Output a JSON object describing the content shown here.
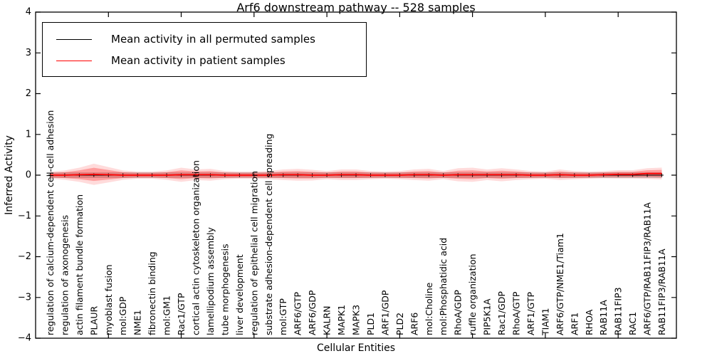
{
  "figure": {
    "title": "Arf6 downstream pathway -- 528 samples",
    "xlabel": "Cellular Entities",
    "ylabel": "Inferred Activity",
    "legend": [
      {
        "label": "Mean activity in all permuted samples",
        "color": "#000000"
      },
      {
        "label": "Mean activity in patient samples",
        "color": "#ff0000"
      }
    ]
  },
  "chart_data": {
    "type": "line",
    "title": "Arf6 downstream pathway -- 528 samples",
    "xlabel": "Cellular Entities",
    "ylabel": "Inferred Activity",
    "ylim": [
      -4,
      4
    ],
    "ytick_labels": [
      "4",
      "3",
      "2",
      "1",
      "0",
      "−1",
      "−2",
      "−3",
      "−4"
    ],
    "ytick_values": [
      4,
      3,
      2,
      1,
      0,
      -1,
      -2,
      -3,
      -4
    ],
    "xtick_major_units": [
      5,
      10,
      15,
      20,
      25,
      30,
      35,
      40
    ],
    "grid": false,
    "legend_position": "upper left",
    "categories": [
      "regulation of calcium-dependent cell-cell adhesion",
      "regulation of axonogenesis",
      "actin filament bundle formation",
      "PLAUR",
      "myoblast fusion",
      "mol:GDP",
      "NME1",
      "fibronectin binding",
      "mol:GM1",
      "Rac1/GTP",
      "cortical actin cytoskeleton organization",
      "lamellipodium assembly",
      "tube morphogenesis",
      "liver development",
      "regulation of epithelial cell migration",
      "substrate adhesion-dependent cell spreading",
      "mol:GTP",
      "ARF6/GTP",
      "ARF6/GDP",
      "KALRN",
      "MAPK1",
      "MAPK3",
      "PLD1",
      "ARF1/GDP",
      "PLD2",
      "ARF6",
      "mol:Choline",
      "mol:Phosphatidic acid",
      "RhoA/GDP",
      "ruffle organization",
      "PIP5K1A",
      "Rac1/GDP",
      "RhoA/GTP",
      "ARF1/GTP",
      "TIAM1",
      "ARF6/GTP/NME1/Tiam1",
      "ARF1",
      "RHOA",
      "RAB11A",
      "RAB11FIP3",
      "RAC1",
      "ARF6/GTP/RAB11FIP3/RAB11A",
      "RAB11FIP3/RAB11A"
    ],
    "series": [
      {
        "name": "Mean activity in all permuted samples",
        "color": "#000000",
        "marker": "+",
        "values": [
          0,
          0,
          0,
          0,
          0,
          0,
          0,
          0,
          0,
          0,
          0,
          0,
          0,
          0,
          0,
          0,
          0,
          0,
          0,
          0,
          0,
          0,
          0,
          0,
          0,
          0,
          0,
          0,
          0,
          0,
          0,
          0,
          0,
          0,
          0,
          0,
          0,
          0,
          0,
          0,
          0,
          0,
          0
        ],
        "band_halfwidth": [
          0.07,
          0.07,
          0.07,
          0.07,
          0.07,
          0.07,
          0.07,
          0.07,
          0.07,
          0.07,
          0.07,
          0.07,
          0.07,
          0.07,
          0.07,
          0.07,
          0.07,
          0.07,
          0.07,
          0.07,
          0.07,
          0.07,
          0.07,
          0.07,
          0.07,
          0.07,
          0.07,
          0.07,
          0.07,
          0.07,
          0.07,
          0.07,
          0.07,
          0.07,
          0.07,
          0.07,
          0.07,
          0.07,
          0.07,
          0.07,
          0.07,
          0.07,
          0.07
        ],
        "band_color": "rgba(120,120,120,0.35)"
      },
      {
        "name": "Mean activity in patient samples",
        "color": "#ff0000",
        "marker": "none",
        "values": [
          0,
          0,
          0.01,
          0.02,
          0.01,
          0,
          0,
          0,
          0,
          0.01,
          0.01,
          0.01,
          0,
          0,
          0,
          0,
          0.01,
          0.01,
          0,
          0,
          0.01,
          0.01,
          0,
          0,
          0,
          0.01,
          0.01,
          0,
          0.01,
          0.01,
          0.01,
          0.01,
          0.01,
          0,
          0,
          0.01,
          0,
          0,
          0.01,
          0.02,
          0.02,
          0.04,
          0.04
        ],
        "band_halfwidth": [
          0.06,
          0.08,
          0.12,
          0.18,
          0.13,
          0.08,
          0.06,
          0.06,
          0.08,
          0.12,
          0.09,
          0.1,
          0.07,
          0.06,
          0.06,
          0.07,
          0.09,
          0.1,
          0.09,
          0.07,
          0.09,
          0.09,
          0.07,
          0.06,
          0.07,
          0.09,
          0.1,
          0.07,
          0.11,
          0.12,
          0.09,
          0.11,
          0.09,
          0.07,
          0.06,
          0.09,
          0.07,
          0.06,
          0.06,
          0.07,
          0.07,
          0.09,
          0.1
        ],
        "band_color": "rgba(255,0,0,0.28)",
        "band_outer_color": "rgba(255,0,0,0.14)"
      }
    ]
  }
}
